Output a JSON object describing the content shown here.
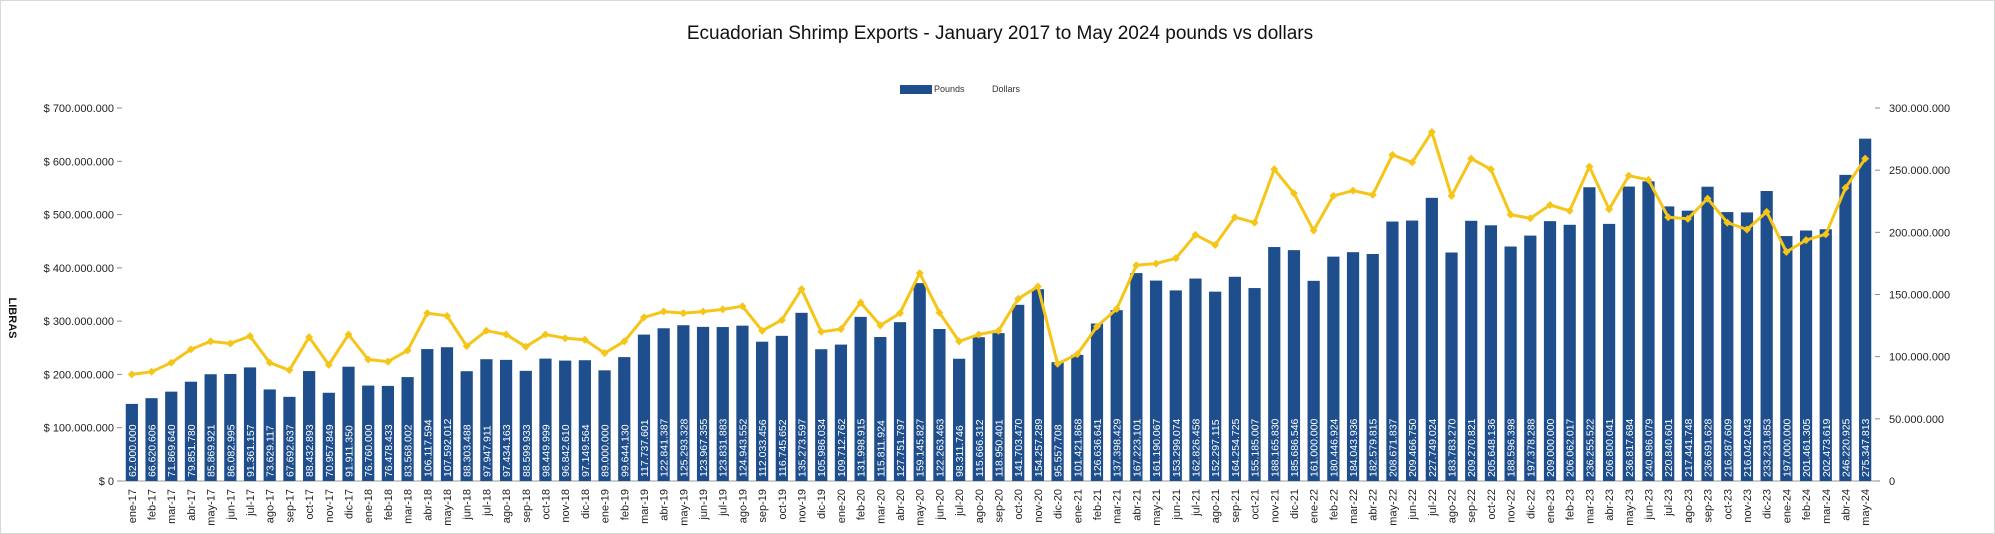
{
  "chart_data": {
    "type": "bar",
    "title": "Ecuadorian Shrimp Exports - January 2017 to May 2024 pounds vs dollars",
    "ylabel": "LIBRAS",
    "ylim_left": [
      0,
      700000000
    ],
    "ylim_right": [
      0,
      300000000
    ],
    "left_ticks": [
      "$ 0",
      "$ 100.000.000",
      "$ 200.000.000",
      "$ 300.000.000",
      "$ 400.000.000",
      "$ 500.000.000",
      "$ 600.000.000",
      "$ 700.000.000"
    ],
    "right_ticks": [
      "0",
      "50.000.000",
      "100.000.000",
      "150.000.000",
      "200.000.000",
      "250.000.000",
      "300.000.000"
    ],
    "legend": [
      {
        "name": "Pounds",
        "color": "#1f4e8c"
      },
      {
        "name": "Dollars",
        "color": "#f5c518"
      }
    ],
    "grid": false,
    "legend_position": "top-center",
    "categories": [
      "ene-17",
      "feb-17",
      "mar-17",
      "abr-17",
      "may-17",
      "jun-17",
      "jul-17",
      "ago-17",
      "sep-17",
      "oct-17",
      "nov-17",
      "dic-17",
      "ene-18",
      "feb-18",
      "mar-18",
      "abr-18",
      "may-18",
      "jun-18",
      "jul-18",
      "ago-18",
      "sep-18",
      "oct-18",
      "nov-18",
      "dic-18",
      "ene-19",
      "feb-19",
      "mar-19",
      "abr-19",
      "may-19",
      "jun-19",
      "jul-19",
      "ago-19",
      "sep-19",
      "oct-19",
      "nov-19",
      "dic-19",
      "ene-20",
      "feb-20",
      "mar-20",
      "abr-20",
      "may-20",
      "jun-20",
      "jul-20",
      "ago-20",
      "sep-20",
      "oct-20",
      "nov-20",
      "dic-20",
      "ene-21",
      "feb-21",
      "mar-21",
      "abr-21",
      "may-21",
      "jun-21",
      "jul-21",
      "ago-21",
      "sep-21",
      "oct-21",
      "nov-21",
      "dic-21",
      "ene-22",
      "feb-22",
      "mar-22",
      "abr-22",
      "may-22",
      "jun-22",
      "jul-22",
      "ago-22",
      "sep-22",
      "oct-22",
      "nov-22",
      "dic-22",
      "ene-23",
      "feb-23",
      "mar-23",
      "abr-23",
      "may-23",
      "jun-23",
      "jul-23",
      "ago-23",
      "sep-23",
      "oct-23",
      "nov-23",
      "dic-23",
      "ene-24",
      "feb-24",
      "mar-24",
      "abr-24",
      "may-24"
    ],
    "series": [
      {
        "name": "Pounds",
        "axis": "right",
        "values": [
          62000000,
          66620606,
          71869640,
          79851780,
          85869921,
          86082995,
          91361157,
          73629117,
          67692637,
          88432893,
          70957849,
          91911350,
          76760000,
          76478433,
          83568002,
          106117594,
          107592012,
          88303488,
          97947911,
          97434163,
          88599933,
          98449999,
          96842610,
          97149564,
          89000000,
          99644130,
          117737601,
          122841387,
          125293328,
          123967355,
          123831883,
          124943552,
          112033456,
          116745652,
          135273597,
          105986034,
          109712762,
          131998915,
          115811924,
          127751797,
          159145827,
          122263463,
          98311746,
          115666312,
          118950401,
          141703470,
          154257289,
          95557708,
          101421868,
          126636641,
          137398429,
          167223101,
          161190067,
          153299074,
          162826458,
          152297115,
          164254725,
          155185007,
          188165830,
          185686546,
          161000000,
          180446924,
          184043936,
          182579815,
          208671837,
          209466750,
          227749024,
          183783270,
          209270821,
          205648136,
          188596398,
          197378288,
          209000000,
          206062017,
          236255522,
          206800041,
          236817684,
          240986079,
          220840601,
          217441748,
          236691628,
          216287609,
          216042043,
          233231853,
          197000000,
          201461305,
          202473619,
          246220925,
          275347813
        ]
      },
      {
        "name": "Dollars",
        "axis": "left",
        "values": [
          200000000,
          205000000,
          222000000,
          247000000,
          262000000,
          258000000,
          272000000,
          222000000,
          208000000,
          270000000,
          218000000,
          275000000,
          228000000,
          224000000,
          245000000,
          315000000,
          310000000,
          253000000,
          282000000,
          275000000,
          252000000,
          275000000,
          268000000,
          265000000,
          240000000,
          262000000,
          307000000,
          318000000,
          315000000,
          318000000,
          322000000,
          328000000,
          282000000,
          302000000,
          360000000,
          280000000,
          285000000,
          335000000,
          292000000,
          315000000,
          390000000,
          316000000,
          262000000,
          275000000,
          282000000,
          342000000,
          365000000,
          220000000,
          238000000,
          290000000,
          323000000,
          405000000,
          408000000,
          418000000,
          462000000,
          443000000,
          495000000,
          485000000,
          585000000,
          540000000,
          470000000,
          535000000,
          545000000,
          537000000,
          612000000,
          598000000,
          655000000,
          535000000,
          605000000,
          585000000,
          500000000,
          493000000,
          518000000,
          507000000,
          590000000,
          510000000,
          573000000,
          565000000,
          495000000,
          492000000,
          530000000,
          485000000,
          472000000,
          505000000,
          430000000,
          452000000,
          463000000,
          550000000,
          605000000
        ]
      }
    ]
  }
}
